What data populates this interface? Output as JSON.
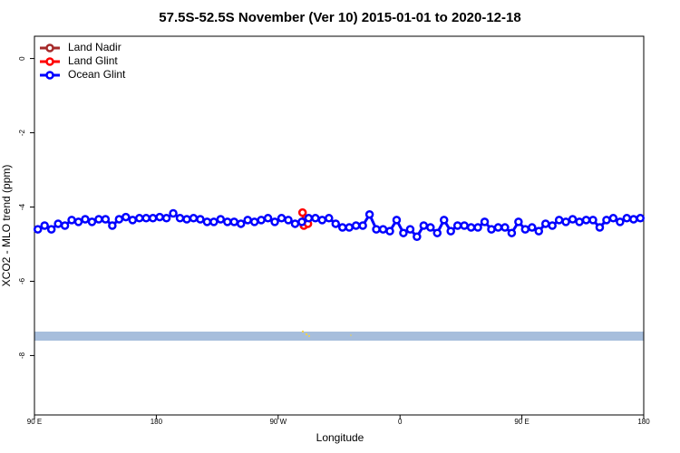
{
  "chart_data": {
    "type": "line",
    "title": "57.5S-52.5S November (Ver 10)   2015-01-01 to 2020-12-18",
    "x_label": "Longitude",
    "y_label": "XCO2 - MLO trend (ppm)",
    "xlim": [
      90,
      540
    ],
    "xticks": [
      {
        "value": 90,
        "label": "90 E"
      },
      {
        "value": 180,
        "label": "180"
      },
      {
        "value": 270,
        "label": "90 W"
      },
      {
        "value": 360,
        "label": "0"
      },
      {
        "value": 450,
        "label": "90 E"
      },
      {
        "value": 540,
        "label": "180"
      }
    ],
    "ylim": [
      -9.6,
      0.6
    ],
    "yticks": [
      0,
      -2,
      -4,
      -6,
      -8
    ],
    "legend": "top-left",
    "series": [
      {
        "name": "Land Nadir",
        "color": "#a52a2a",
        "x": [],
        "values": []
      },
      {
        "name": "Land Glint",
        "color": "#ff0000",
        "x": [
          288,
          289,
          292
        ],
        "values": [
          -4.15,
          -4.5,
          -4.45
        ]
      },
      {
        "name": "Ocean Glint",
        "color": "#0000ff",
        "x": [
          92.5,
          97.5,
          102.5,
          107.5,
          112.5,
          117.5,
          122.5,
          127.5,
          132.5,
          137.5,
          142.5,
          147.5,
          152.5,
          157.5,
          162.5,
          167.5,
          172.5,
          177.5,
          182.5,
          187.5,
          192.5,
          197.5,
          202.5,
          207.5,
          212.5,
          217.5,
          222.5,
          227.5,
          232.5,
          237.5,
          242.5,
          247.5,
          252.5,
          257.5,
          262.5,
          267.5,
          272.5,
          277.5,
          282.5,
          287.5,
          292.5,
          297.5,
          302.5,
          307.5,
          312.5,
          317.5,
          322.5,
          327.5,
          332.5,
          337.5,
          342.5,
          347.5,
          352.5,
          357.5,
          362.5,
          367.5,
          372.5,
          377.5,
          382.5,
          387.5,
          392.5,
          397.5,
          402.5,
          407.5,
          412.5,
          417.5,
          422.5,
          427.5,
          432.5,
          437.5,
          442.5,
          447.5,
          452.5,
          457.5,
          462.5,
          467.5,
          472.5,
          477.5,
          482.5,
          487.5,
          492.5,
          497.5,
          502.5,
          507.5,
          512.5,
          517.5,
          522.5,
          527.5,
          532.5,
          537.5
        ],
        "values": [
          -4.6,
          -4.5,
          -4.6,
          -4.45,
          -4.5,
          -4.35,
          -4.4,
          -4.33,
          -4.4,
          -4.33,
          -4.33,
          -4.5,
          -4.33,
          -4.27,
          -4.35,
          -4.3,
          -4.3,
          -4.3,
          -4.27,
          -4.3,
          -4.17,
          -4.3,
          -4.33,
          -4.3,
          -4.33,
          -4.4,
          -4.4,
          -4.33,
          -4.4,
          -4.4,
          -4.45,
          -4.35,
          -4.4,
          -4.35,
          -4.3,
          -4.4,
          -4.3,
          -4.35,
          -4.45,
          -4.4,
          -4.3,
          -4.3,
          -4.35,
          -4.3,
          -4.45,
          -4.55,
          -4.55,
          -4.5,
          -4.5,
          -4.2,
          -4.6,
          -4.6,
          -4.65,
          -4.35,
          -4.7,
          -4.6,
          -4.8,
          -4.5,
          -4.55,
          -4.7,
          -4.35,
          -4.65,
          -4.5,
          -4.5,
          -4.55,
          -4.55,
          -4.4,
          -4.6,
          -4.55,
          -4.55,
          -4.7,
          -4.4,
          -4.6,
          -4.55,
          -4.65,
          -4.45,
          -4.5,
          -4.35,
          -4.4,
          -4.33,
          -4.4,
          -4.35,
          -4.35,
          -4.55,
          -4.35,
          -4.3,
          -4.4,
          -4.3,
          -4.33,
          -4.3
        ]
      }
    ]
  }
}
